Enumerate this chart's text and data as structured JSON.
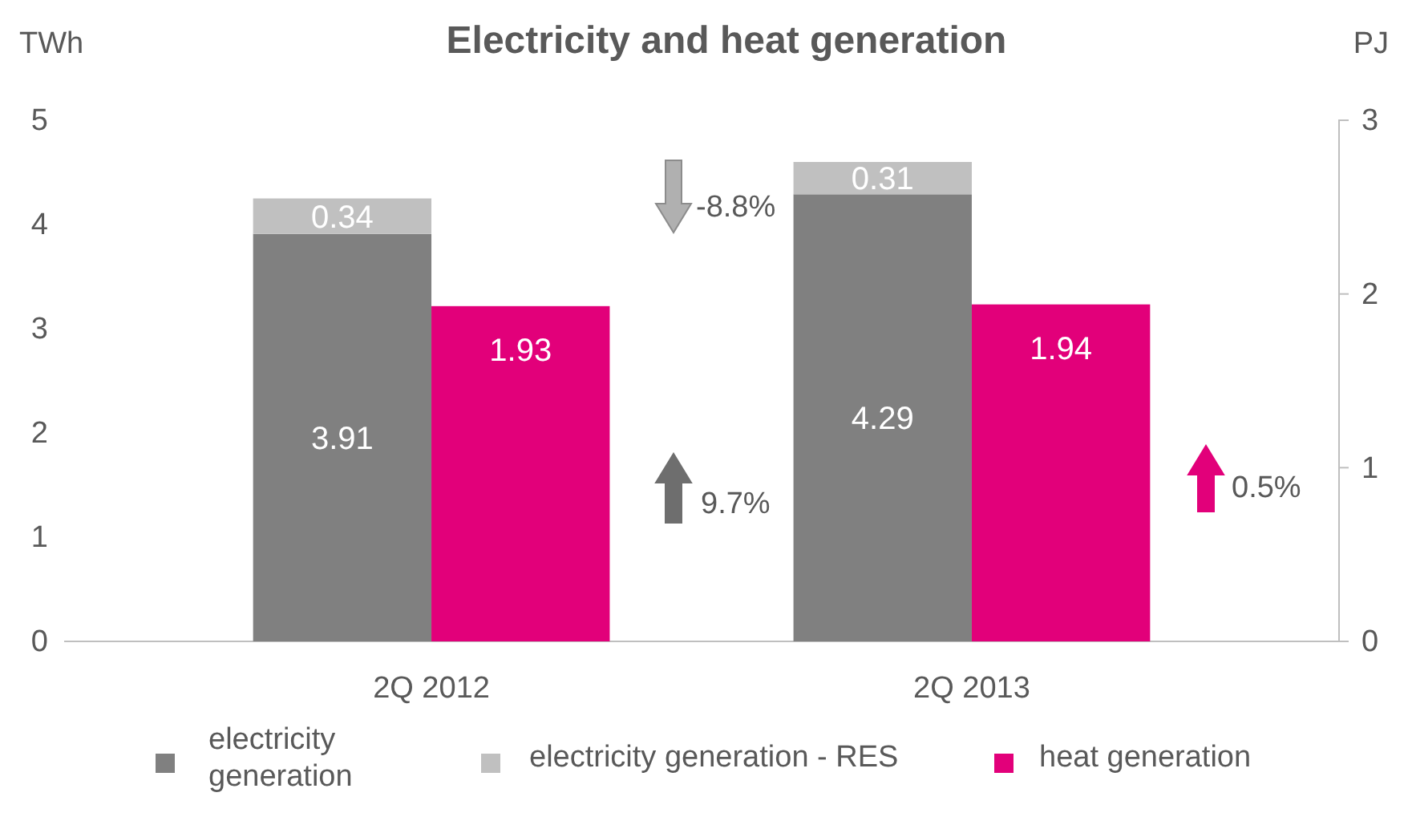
{
  "chart_data": {
    "type": "bar",
    "title": "Electricity and heat generation",
    "ylabel": "TWh",
    "y2label": "PJ",
    "categories": [
      "2Q 2012",
      "2Q 2013"
    ],
    "series": [
      {
        "name": "electricity generation",
        "color": "#808080",
        "values": [
          3.91,
          4.29
        ]
      },
      {
        "name": "electricity generation - RES",
        "color": "#c0c0c0",
        "values": [
          0.34,
          0.31
        ]
      },
      {
        "name": "heat generation",
        "color": "#e2007a",
        "values": [
          1.93,
          1.94
        ],
        "axis": "y2"
      }
    ],
    "stacked": true,
    "data_labels": true,
    "ylim": [
      0,
      5
    ],
    "yticks": [
      0,
      1,
      2,
      3,
      4,
      5
    ],
    "y2lim": [
      0,
      3
    ],
    "y2ticks": [
      0,
      1,
      2,
      3
    ],
    "annotations": [
      "-8.8%",
      "9.7%",
      "0.5%"
    ],
    "legend": "bottom",
    "grid": false
  }
}
